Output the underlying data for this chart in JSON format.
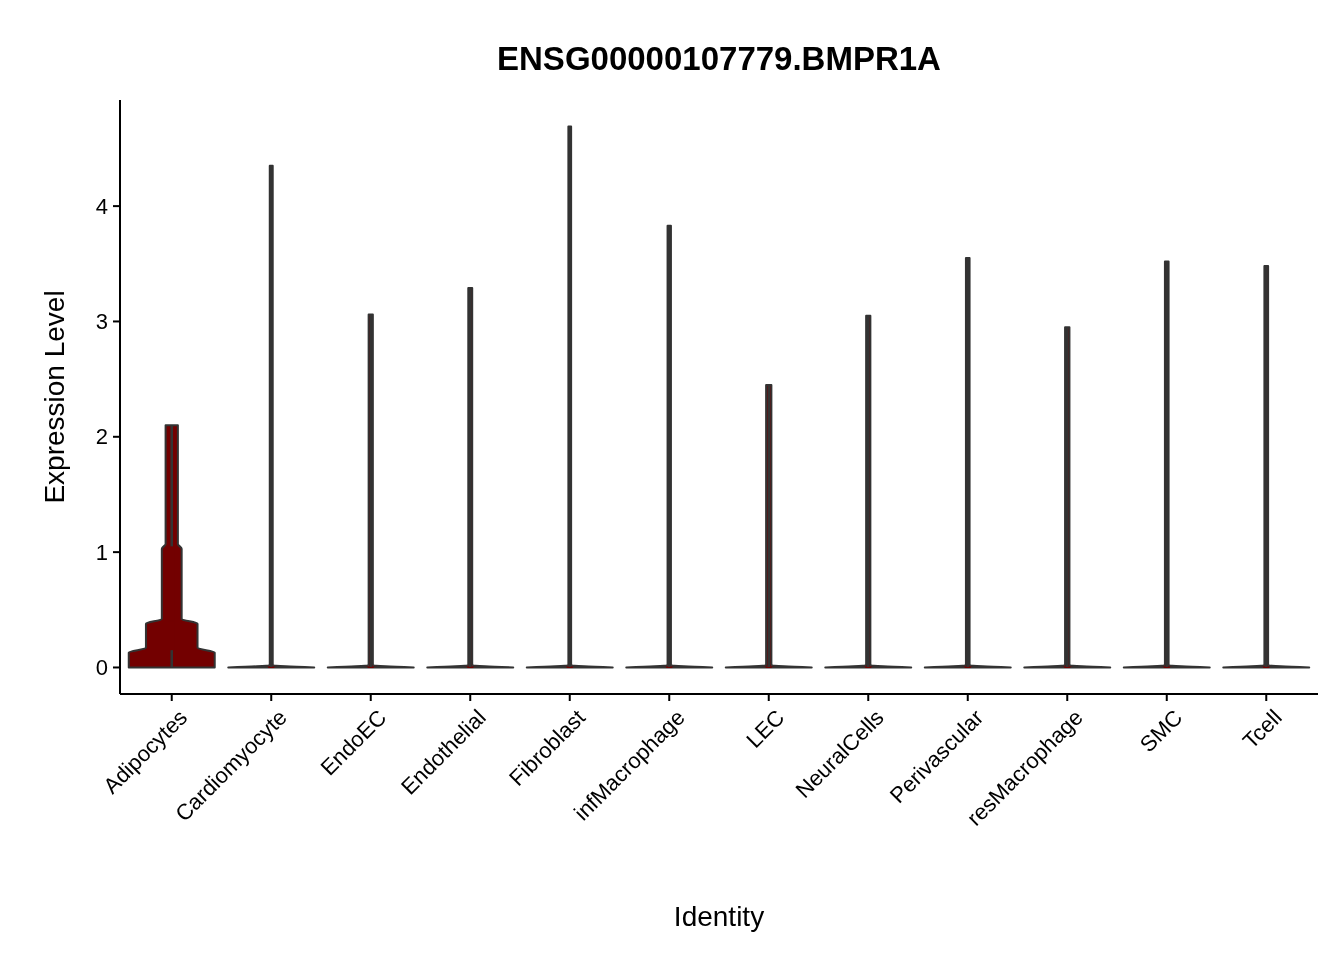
{
  "chart_data": {
    "type": "box",
    "title": "ENSG00000107779.BMPR1A",
    "xlabel": "Identity",
    "ylabel": "Expression Level",
    "categories": [
      "Adipocytes",
      "Cardiomyocyte",
      "EndoEC",
      "Endothelial",
      "Fibroblast",
      "infMacrophage",
      "LEC",
      "NeuralCells",
      "Perivascular",
      "resMacrophage",
      "SMC",
      "Tcell"
    ],
    "boxes": [
      {
        "low": 0,
        "q1": 0.15,
        "median": 0.4,
        "q3": 1.05,
        "high": 2.1
      },
      {
        "low": 0,
        "q1": 0,
        "median": 0,
        "q3": 0,
        "high": 4.35
      },
      {
        "low": 0,
        "q1": 0,
        "median": 0,
        "q3": 0,
        "high": 3.06
      },
      {
        "low": 0,
        "q1": 0,
        "median": 0,
        "q3": 0,
        "high": 3.29
      },
      {
        "low": 0,
        "q1": 0,
        "median": 0,
        "q3": 0,
        "high": 4.69
      },
      {
        "low": 0,
        "q1": 0,
        "median": 0,
        "q3": 0,
        "high": 3.83
      },
      {
        "low": 0,
        "q1": 0,
        "median": 0,
        "q3": 0,
        "high": 2.45
      },
      {
        "low": 0,
        "q1": 0,
        "median": 0,
        "q3": 0,
        "high": 3.05
      },
      {
        "low": 0,
        "q1": 0,
        "median": 0,
        "q3": 0,
        "high": 3.55
      },
      {
        "low": 0,
        "q1": 0,
        "median": 0,
        "q3": 0,
        "high": 2.95
      },
      {
        "low": 0,
        "q1": 0,
        "median": 0,
        "q3": 0,
        "high": 3.52
      },
      {
        "low": 0,
        "q1": 0,
        "median": 0,
        "q3": 0,
        "high": 3.48
      }
    ],
    "color": "#730000",
    "ylim": [
      -0.23,
      4.92
    ],
    "yticks": [
      0,
      1,
      2,
      3,
      4
    ],
    "grid": false
  }
}
